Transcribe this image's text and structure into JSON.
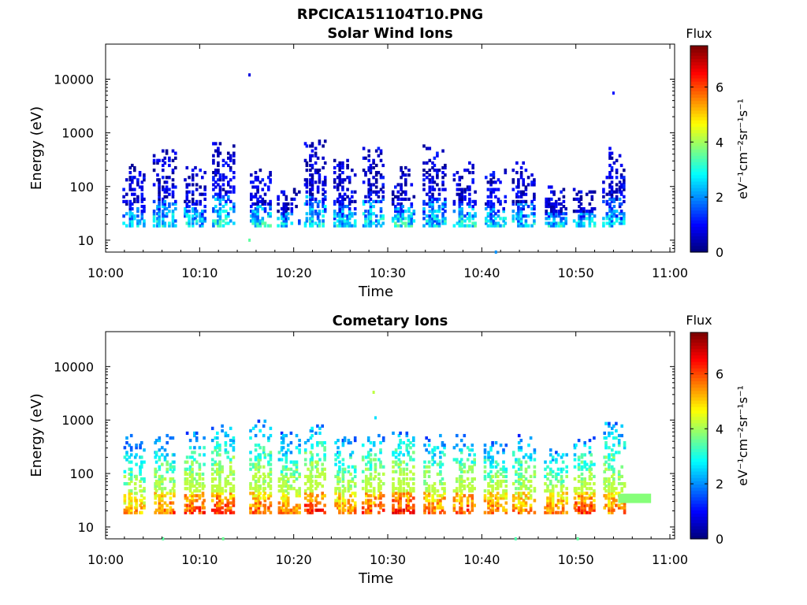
{
  "figure": {
    "title": "RPCICA151104T10.PNG"
  },
  "chart_data": [
    {
      "type": "heatmap",
      "title": "Solar Wind Ions",
      "xlabel": "Time",
      "ylabel": "Energy (eV)",
      "x_ticks": [
        "10:00",
        "10:10",
        "10:20",
        "10:30",
        "10:40",
        "10:50",
        "11:00"
      ],
      "x_range_minutes": [
        0,
        60.5
      ],
      "y_ticks": [
        "10",
        "100",
        "1000",
        "10000"
      ],
      "ylim": [
        6,
        45000
      ],
      "y_scale": "log",
      "colorbar": {
        "title": "Flux",
        "label": "eV⁻¹cm⁻²sr⁻¹s⁻¹",
        "range": [
          0,
          7.5
        ],
        "ticks": [
          "0",
          "2",
          "4",
          "6"
        ]
      },
      "bursts": [
        {
          "t": 2.2,
          "top": 250,
          "peak": 3.3
        },
        {
          "t": 5.4,
          "top": 450,
          "peak": 3.6
        },
        {
          "t": 8.6,
          "top": 250,
          "peak": 3.5
        },
        {
          "t": 11.6,
          "top": 650,
          "peak": 3.7
        },
        {
          "t": 15.6,
          "top": 200,
          "peak": 3.8
        },
        {
          "t": 18.6,
          "top": 90,
          "peak": 3.4
        },
        {
          "t": 21.4,
          "top": 750,
          "peak": 3.6
        },
        {
          "t": 24.6,
          "top": 300,
          "peak": 3.4
        },
        {
          "t": 27.6,
          "top": 550,
          "peak": 3.6
        },
        {
          "t": 30.8,
          "top": 250,
          "peak": 3.8
        },
        {
          "t": 34.1,
          "top": 550,
          "peak": 3.5
        },
        {
          "t": 37.3,
          "top": 280,
          "peak": 3.8
        },
        {
          "t": 40.6,
          "top": 200,
          "peak": 3.6
        },
        {
          "t": 43.6,
          "top": 280,
          "peak": 3.4
        },
        {
          "t": 47.0,
          "top": 100,
          "peak": 3.5
        },
        {
          "t": 50.0,
          "top": 90,
          "peak": 3.6
        },
        {
          "t": 53.2,
          "top": 500,
          "peak": 3.3
        }
      ],
      "isolated_points": [
        {
          "t": 15.3,
          "e": 12000,
          "v": 0.7
        },
        {
          "t": 54.0,
          "e": 5500,
          "v": 1.0
        },
        {
          "t": 15.3,
          "e": 10,
          "v": 3.5
        },
        {
          "t": 41.5,
          "e": 6,
          "v": 2.0
        }
      ],
      "colors": {
        "min": "#00008f",
        "max": "#800000"
      }
    },
    {
      "type": "heatmap",
      "title": "Cometary Ions",
      "xlabel": "Time",
      "ylabel": "Energy (eV)",
      "x_ticks": [
        "10:00",
        "10:10",
        "10:20",
        "10:30",
        "10:40",
        "10:50",
        "11:00"
      ],
      "x_range_minutes": [
        0,
        60.5
      ],
      "y_ticks": [
        "10",
        "100",
        "1000",
        "10000"
      ],
      "ylim": [
        6,
        45000
      ],
      "y_scale": "log",
      "colorbar": {
        "title": "Flux",
        "label": "eV⁻¹cm⁻²sr⁻¹s⁻¹",
        "range": [
          0,
          7.5
        ],
        "ticks": [
          "0",
          "2",
          "4",
          "6"
        ]
      },
      "bursts": [
        {
          "t": 2.2,
          "top": 500,
          "peak": 6.0
        },
        {
          "t": 5.4,
          "top": 500,
          "peak": 6.5
        },
        {
          "t": 8.6,
          "top": 550,
          "peak": 6.8
        },
        {
          "t": 11.6,
          "top": 850,
          "peak": 6.8
        },
        {
          "t": 15.6,
          "top": 950,
          "peak": 6.5
        },
        {
          "t": 18.6,
          "top": 550,
          "peak": 6.3
        },
        {
          "t": 21.4,
          "top": 800,
          "peak": 7.0
        },
        {
          "t": 24.6,
          "top": 500,
          "peak": 6.3
        },
        {
          "t": 27.6,
          "top": 500,
          "peak": 6.8
        },
        {
          "t": 30.8,
          "top": 600,
          "peak": 7.0
        },
        {
          "t": 34.1,
          "top": 500,
          "peak": 6.5
        },
        {
          "t": 37.3,
          "top": 500,
          "peak": 6.8
        },
        {
          "t": 40.6,
          "top": 400,
          "peak": 6.5
        },
        {
          "t": 43.6,
          "top": 500,
          "peak": 6.3
        },
        {
          "t": 47.0,
          "top": 300,
          "peak": 6.5
        },
        {
          "t": 50.0,
          "top": 450,
          "peak": 6.8
        },
        {
          "t": 53.2,
          "top": 1100,
          "peak": 6.3
        }
      ],
      "band": {
        "t_start": 54.5,
        "t_end": 58.0,
        "e_low": 28,
        "e_high": 42,
        "v": 3.8
      },
      "isolated_points": [
        {
          "t": 28.5,
          "e": 3300,
          "v": 4.2
        },
        {
          "t": 28.7,
          "e": 1100,
          "v": 2.6
        },
        {
          "t": 6.1,
          "e": 6,
          "v": 3.5
        },
        {
          "t": 12.5,
          "e": 6,
          "v": 3.6
        },
        {
          "t": 43.6,
          "e": 6,
          "v": 3.4
        },
        {
          "t": 50.2,
          "e": 6,
          "v": 3.5
        }
      ],
      "colors": {
        "min": "#00008f",
        "max": "#800000"
      }
    }
  ]
}
